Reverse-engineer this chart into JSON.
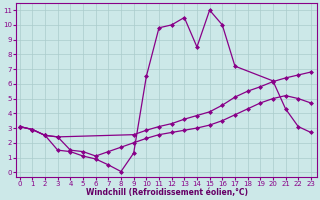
{
  "xlabel": "Windchill (Refroidissement éolien,°C)",
  "bg_color": "#cce8e8",
  "grid_color": "#aacccc",
  "line_color": "#880088",
  "x_ticks": [
    0,
    1,
    2,
    3,
    4,
    5,
    6,
    7,
    8,
    9,
    10,
    11,
    12,
    13,
    14,
    15,
    16,
    17,
    18,
    19,
    20,
    21,
    22,
    23
  ],
  "y_ticks": [
    0,
    1,
    2,
    3,
    4,
    5,
    6,
    7,
    8,
    9,
    10,
    11
  ],
  "xlim": [
    -0.3,
    23.5
  ],
  "ylim": [
    -0.3,
    11.5
  ],
  "curve1_x": [
    0,
    1,
    2,
    3,
    4,
    5,
    6,
    7,
    8,
    9,
    10,
    11,
    12,
    13,
    14,
    15,
    16,
    17,
    20,
    21,
    22,
    23
  ],
  "curve1_y": [
    3.1,
    2.9,
    2.5,
    1.5,
    1.4,
    1.1,
    0.9,
    0.5,
    0.05,
    1.3,
    6.5,
    9.8,
    10.0,
    10.5,
    8.5,
    11.0,
    10.0,
    7.2,
    6.2,
    4.3,
    3.1,
    2.7
  ],
  "curve2_x": [
    0,
    1,
    2,
    3,
    9,
    10,
    11,
    12,
    13,
    14,
    15,
    16,
    17,
    18,
    19,
    20,
    21,
    22,
    23
  ],
  "curve2_y": [
    3.1,
    2.9,
    2.5,
    2.4,
    2.55,
    2.85,
    3.1,
    3.3,
    3.6,
    3.85,
    4.1,
    4.55,
    5.1,
    5.5,
    5.8,
    6.15,
    6.4,
    6.6,
    6.8
  ],
  "curve3_x": [
    0,
    1,
    2,
    3,
    4,
    5,
    6,
    7,
    8,
    9,
    10,
    11,
    12,
    13,
    14,
    15,
    16,
    17,
    18,
    19,
    20,
    21,
    22,
    23
  ],
  "curve3_y": [
    3.1,
    2.9,
    2.5,
    2.4,
    1.5,
    1.4,
    1.1,
    1.4,
    1.7,
    2.0,
    2.3,
    2.55,
    2.7,
    2.85,
    3.0,
    3.2,
    3.5,
    3.9,
    4.3,
    4.7,
    5.0,
    5.2,
    5.0,
    4.7
  ],
  "marker": "D",
  "markersize": 2.0,
  "linewidth": 0.9
}
